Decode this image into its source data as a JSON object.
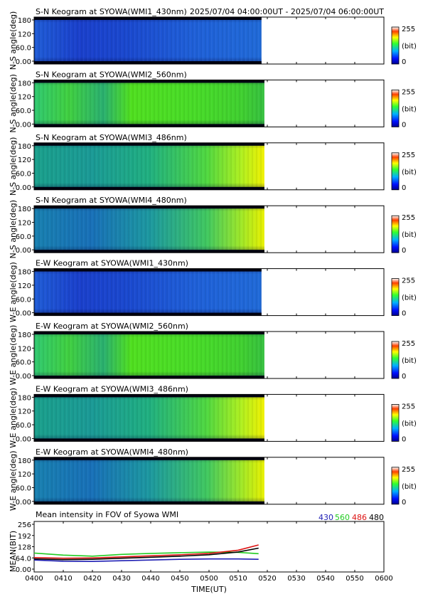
{
  "header": {
    "time_range": "2025/07/04 04:00:00UT - 2025/07/04 06:00:00UT"
  },
  "colorbar": {
    "max_label": "255",
    "unit_label": "(bit)",
    "min_label": "0"
  },
  "keograms": [
    {
      "title": "S-N Keogram at SYOWA(WMI1_430nm)",
      "ylabel": "N-S angle(deg)",
      "yticks": [
        "180",
        "120",
        "60.0",
        "0.00"
      ],
      "end_time": "05:18",
      "wavelength": "430nm"
    },
    {
      "title": "S-N Keogram at SYOWA(WMI2_560nm)",
      "ylabel": "N-S angle(deg)",
      "yticks": [
        "180",
        "120",
        "60.0",
        "0.00"
      ],
      "end_time": "05:19",
      "wavelength": "560nm"
    },
    {
      "title": "S-N Keogram at SYOWA(WMI3_486nm)",
      "ylabel": "N-S angle(deg)",
      "yticks": [
        "180",
        "120",
        "60.0",
        "0.00"
      ],
      "end_time": "05:19",
      "wavelength": "486nm"
    },
    {
      "title": "S-N Keogram at SYOWA(WMI4_480nm)",
      "ylabel": "N-S angle(deg)",
      "yticks": [
        "180",
        "120",
        "60.0",
        "0.00"
      ],
      "end_time": "05:19",
      "wavelength": "480nm"
    },
    {
      "title": "E-W Keogram at SYOWA(WMI1_430nm)",
      "ylabel": "W-E angle(deg)",
      "yticks": [
        "180",
        "120",
        "60.0",
        "0.00"
      ],
      "end_time": "05:18",
      "wavelength": "430nm"
    },
    {
      "title": "E-W Keogram at SYOWA(WMI2_560nm)",
      "ylabel": "W-E angle(deg)",
      "yticks": [
        "180",
        "120",
        "60.0",
        "0.00"
      ],
      "end_time": "05:19",
      "wavelength": "560nm"
    },
    {
      "title": "E-W Keogram at SYOWA(WMI3_486nm)",
      "ylabel": "W-E angle(deg)",
      "yticks": [
        "180",
        "120",
        "60.0",
        "0.00"
      ],
      "end_time": "05:19",
      "wavelength": "486nm"
    },
    {
      "title": "E-W Keogram at SYOWA(WMI4_480nm)",
      "ylabel": "W-E angle(deg)",
      "yticks": [
        "180",
        "120",
        "60.0",
        "0.00"
      ],
      "end_time": "05:19",
      "wavelength": "480nm"
    }
  ],
  "mean_panel": {
    "title": "Mean intensity in FOV of Syowa WMI",
    "ylabel": "MEAN(BIT)",
    "yticks": [
      "256",
      "192",
      "128",
      "64.0",
      "0.00"
    ],
    "legend": [
      {
        "label": "430",
        "color": "#1f1fb4"
      },
      {
        "label": "560",
        "color": "#22cc22"
      },
      {
        "label": "486",
        "color": "#dd1111"
      },
      {
        "label": "480",
        "color": "#000000"
      }
    ]
  },
  "xaxis": {
    "label": "TIME(UT)",
    "ticks": [
      "0400",
      "0410",
      "0420",
      "0430",
      "0440",
      "0450",
      "0500",
      "0510",
      "0520",
      "0530",
      "0540",
      "0550",
      "0600"
    ]
  },
  "chart_data": {
    "type": "line",
    "title": "Mean intensity in FOV of Syowa WMI",
    "xlabel": "TIME(UT)",
    "ylabel": "MEAN(BIT)",
    "xlim": [
      "04:00",
      "06:00"
    ],
    "ylim": [
      0,
      256
    ],
    "grid": false,
    "legend_position": "top-right",
    "x": [
      "04:00",
      "04:10",
      "04:20",
      "04:30",
      "04:40",
      "04:50",
      "05:00",
      "05:10",
      "05:17"
    ],
    "series": [
      {
        "name": "430",
        "color": "#1f1fb4",
        "values": [
          52,
          45,
          44,
          48,
          52,
          56,
          58,
          58,
          56
        ]
      },
      {
        "name": "560",
        "color": "#22cc22",
        "values": [
          92,
          80,
          74,
          84,
          90,
          94,
          97,
          96,
          88
        ]
      },
      {
        "name": "486",
        "color": "#dd1111",
        "values": [
          66,
          62,
          64,
          70,
          76,
          82,
          90,
          108,
          138
        ]
      },
      {
        "name": "480",
        "color": "#000000",
        "values": [
          58,
          54,
          56,
          62,
          68,
          74,
          82,
          98,
          120
        ]
      }
    ]
  }
}
